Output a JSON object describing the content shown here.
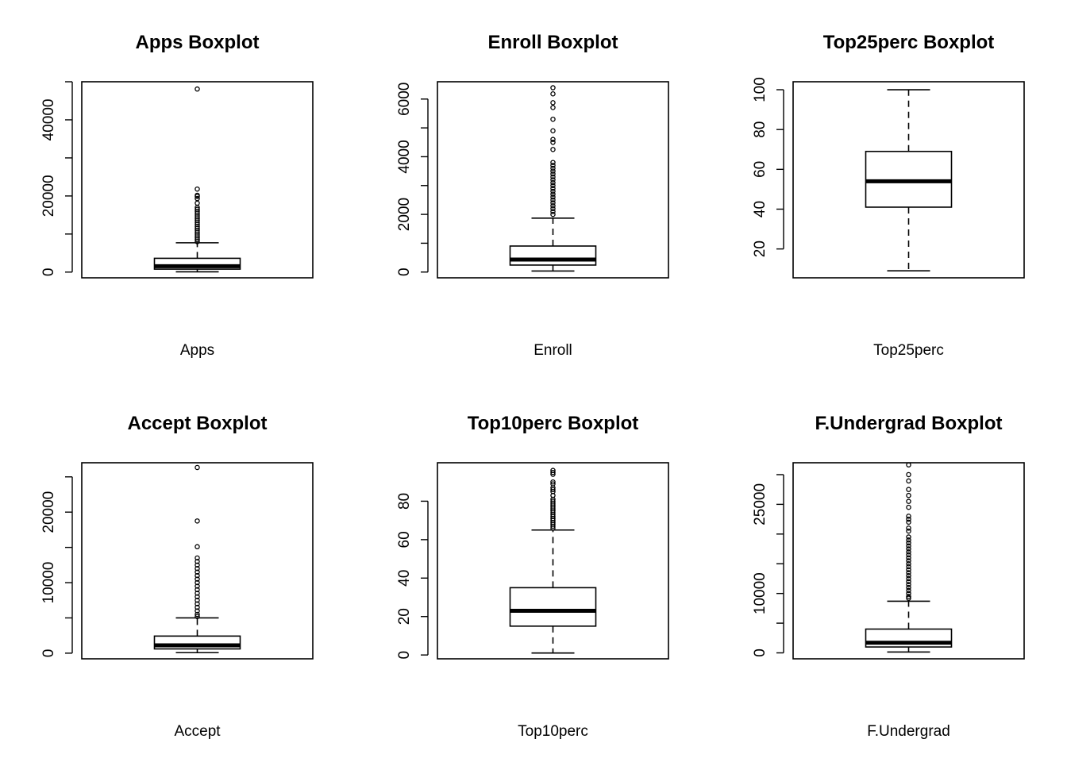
{
  "chart_data": [
    {
      "type": "boxplot",
      "title": "Apps Boxplot",
      "xlabel": "Apps",
      "ylim": [
        -1500,
        50000
      ],
      "yticks": [
        0,
        10000,
        20000,
        30000,
        40000,
        50000
      ],
      "ytick_labels": [
        "0",
        "",
        "20000",
        "",
        "40000",
        ""
      ],
      "stats": {
        "min": 81,
        "q1": 776,
        "median": 1558,
        "q3": 3624,
        "max": 7700
      },
      "outliers": [
        48094,
        21804,
        20192,
        19873,
        19315,
        18114,
        17000,
        16500,
        16000,
        15500,
        15000,
        14500,
        14000,
        13500,
        13000,
        12500,
        12000,
        11500,
        11000,
        10500,
        10000,
        9500,
        9000,
        8500,
        8000
      ]
    },
    {
      "type": "boxplot",
      "title": "Enroll Boxplot",
      "xlabel": "Enroll",
      "ylim": [
        -200,
        6600
      ],
      "yticks": [
        0,
        1000,
        2000,
        3000,
        4000,
        5000,
        6000
      ],
      "ytick_labels": [
        "0",
        "",
        "2000",
        "",
        "4000",
        "",
        "6000"
      ],
      "stats": {
        "min": 35,
        "q1": 242,
        "median": 434,
        "q3": 902,
        "max": 1870
      },
      "outliers": [
        6392,
        6180,
        5874,
        5705,
        5300,
        4900,
        4600,
        4500,
        4250,
        3800,
        3700,
        3600,
        3500,
        3400,
        3300,
        3200,
        3100,
        3000,
        2900,
        2800,
        2700,
        2600,
        2500,
        2400,
        2300,
        2200,
        2100,
        2000
      ]
    },
    {
      "type": "boxplot",
      "title": "Top25perc Boxplot",
      "xlabel": "Top25perc",
      "ylim": [
        5.5,
        104
      ],
      "yticks": [
        20,
        40,
        60,
        80,
        100
      ],
      "ytick_labels": [
        "20",
        "40",
        "60",
        "80",
        "100"
      ],
      "stats": {
        "min": 9,
        "q1": 41,
        "median": 54,
        "q3": 69,
        "max": 100
      },
      "outliers": []
    },
    {
      "type": "boxplot",
      "title": "Accept Boxplot",
      "xlabel": "Accept",
      "ylim": [
        -800,
        27000
      ],
      "yticks": [
        0,
        5000,
        10000,
        15000,
        20000,
        25000
      ],
      "ytick_labels": [
        "0",
        "",
        "10000",
        "",
        "20000",
        ""
      ],
      "stats": {
        "min": 72,
        "q1": 604,
        "median": 1110,
        "q3": 2424,
        "max": 5000
      },
      "outliers": [
        26330,
        18744,
        15096,
        13500,
        13000,
        12500,
        12000,
        11500,
        11000,
        10500,
        10000,
        9500,
        9000,
        8500,
        8000,
        7500,
        7000,
        6500,
        6000,
        5500,
        5200
      ]
    },
    {
      "type": "boxplot",
      "title": "Top10perc Boxplot",
      "xlabel": "Top10perc",
      "ylim": [
        -2,
        100
      ],
      "yticks": [
        0,
        20,
        40,
        60,
        80
      ],
      "ytick_labels": [
        "0",
        "20",
        "40",
        "60",
        "80"
      ],
      "stats": {
        "min": 1,
        "q1": 15,
        "median": 23,
        "q3": 35,
        "max": 65
      },
      "outliers": [
        96,
        95,
        94,
        90,
        89,
        87,
        86,
        85,
        83,
        81,
        80,
        79,
        78,
        77,
        76,
        75,
        74,
        73,
        72,
        71,
        70,
        69,
        68,
        67,
        66
      ]
    },
    {
      "type": "boxplot",
      "title": "F.Undergrad Boxplot",
      "xlabel": "F.Undergrad",
      "ylim": [
        -1000,
        32000
      ],
      "yticks": [
        0,
        5000,
        10000,
        15000,
        20000,
        25000,
        30000
      ],
      "ytick_labels": [
        "0",
        "",
        "10000",
        "",
        "",
        "25000",
        ""
      ],
      "stats": {
        "min": 139,
        "q1": 992,
        "median": 1707,
        "q3": 4005,
        "max": 8700
      },
      "outliers": [
        31643,
        30000,
        28938,
        27500,
        26500,
        25500,
        24500,
        23000,
        22500,
        22000,
        21000,
        20500,
        19500,
        19000,
        18500,
        18000,
        17500,
        17000,
        16500,
        16000,
        15500,
        15000,
        14500,
        14000,
        13500,
        13000,
        12500,
        12000,
        11500,
        11000,
        10500,
        10000,
        9500,
        9200
      ]
    }
  ],
  "colors": {
    "axes": "#000000",
    "box": "#000000",
    "background": "#ffffff"
  }
}
